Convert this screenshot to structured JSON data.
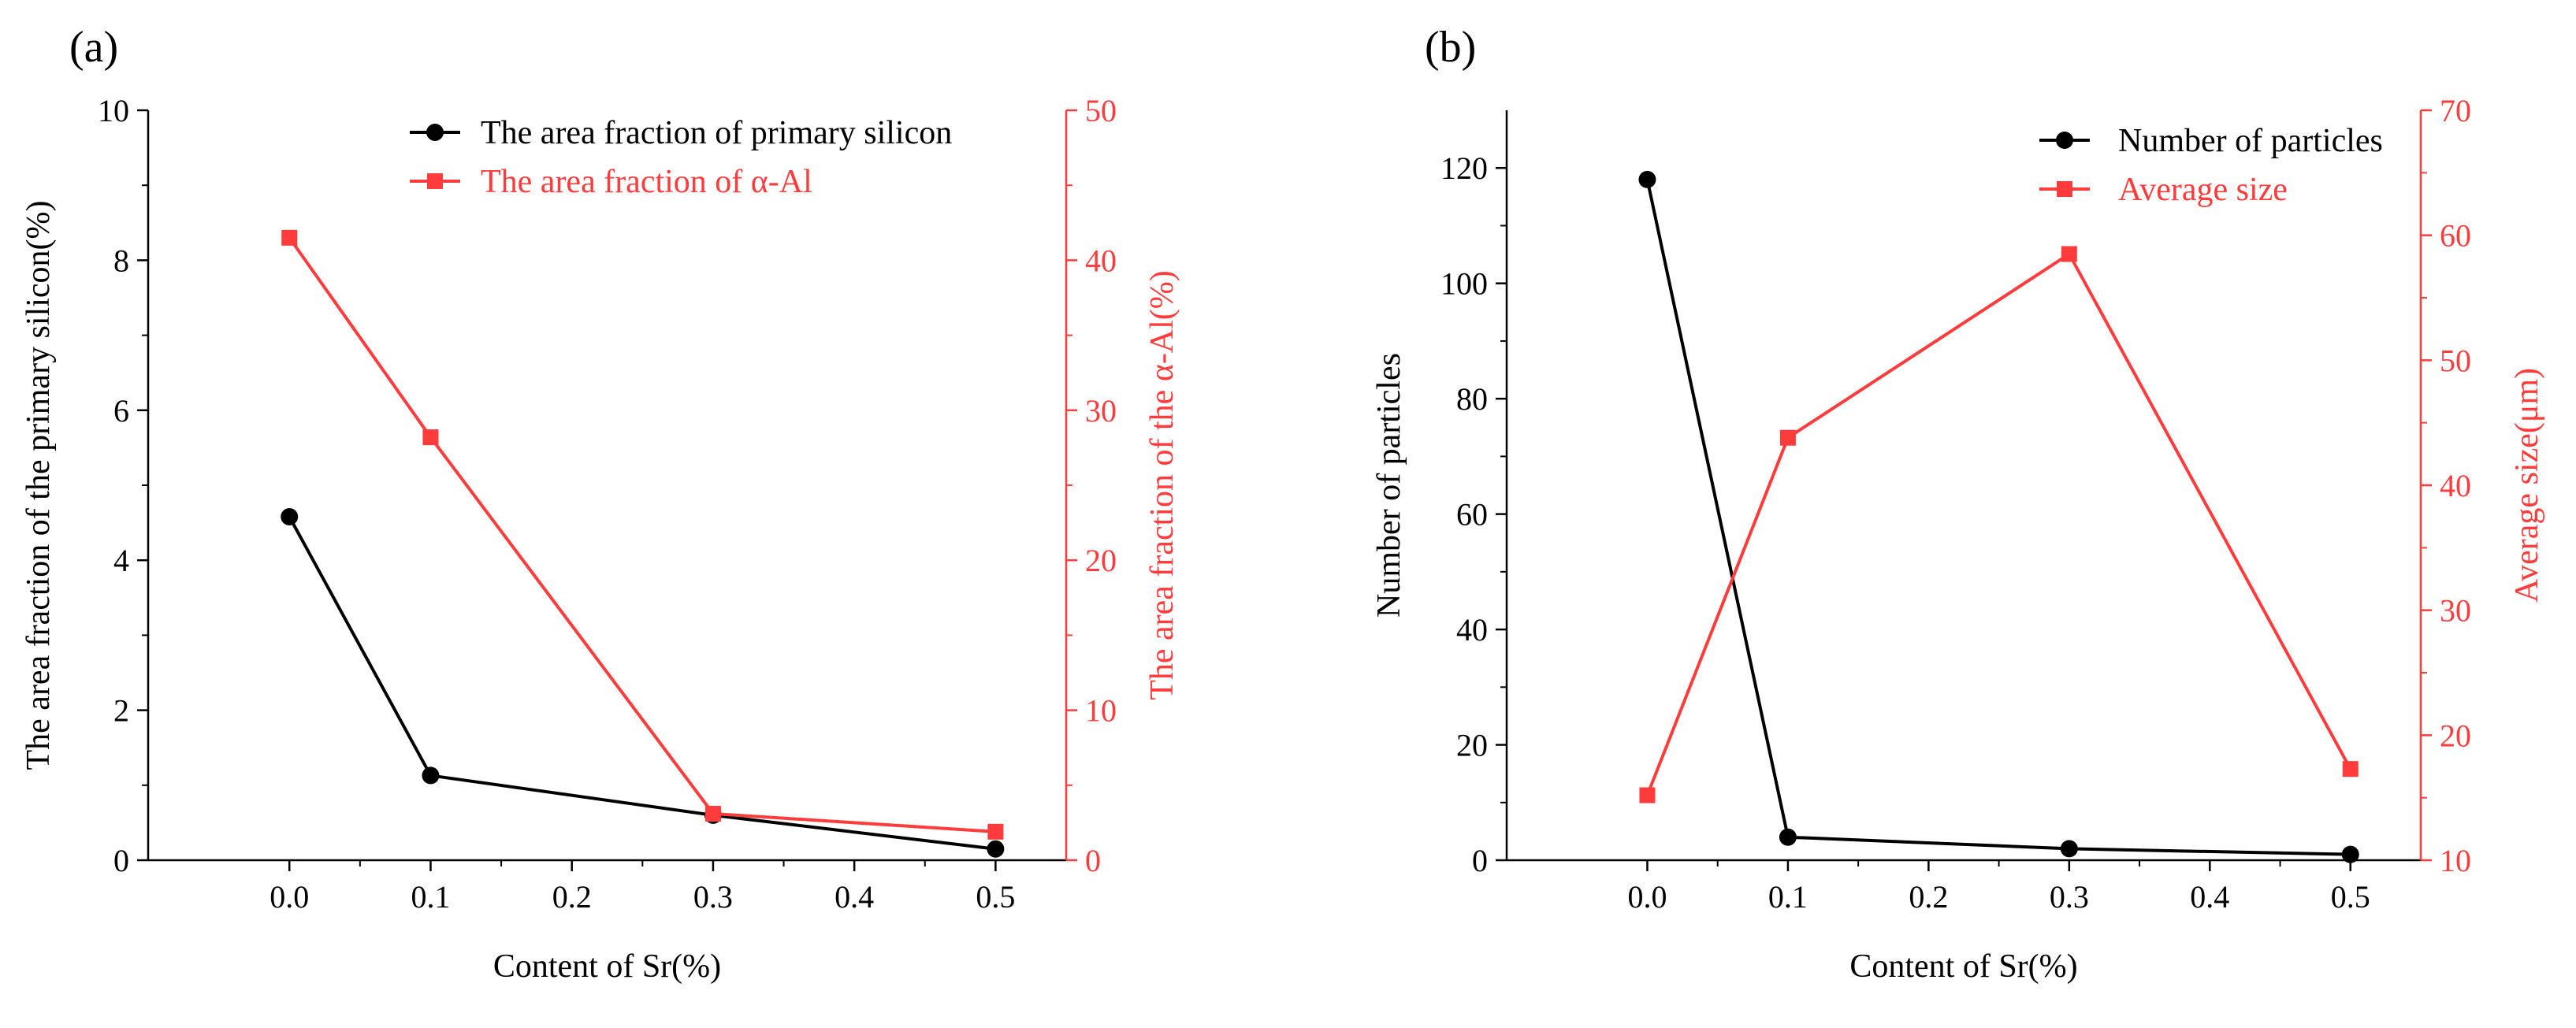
{
  "chart_data": [
    {
      "panel": "(a)",
      "type": "line",
      "xlabel": "Content of Sr(%)",
      "ylabel": "The area fraction of the primary silicon(%)",
      "ylabel_right": "The area fraction of the α-Al(%)",
      "x": [
        0.0,
        0.1,
        0.3,
        0.5
      ],
      "x_ticks": [
        "0.0",
        "0.1",
        "0.2",
        "0.3",
        "0.4",
        "0.5"
      ],
      "xlim": [
        -0.1,
        0.55
      ],
      "ylim": [
        0,
        10
      ],
      "y_ticks": [
        "0",
        "2",
        "4",
        "6",
        "8",
        "10"
      ],
      "ylim_right": [
        0,
        50
      ],
      "y_ticks_right": [
        "0",
        "10",
        "20",
        "30",
        "40",
        "50"
      ],
      "series": [
        {
          "name": "The area fraction of  primary silicon",
          "axis": "left",
          "color": "#000000",
          "marker": "circle",
          "values": [
            4.58,
            1.13,
            0.6,
            0.15
          ]
        },
        {
          "name": "The area fraction of  α-Al",
          "axis": "right",
          "color": "#ff3b3b",
          "marker": "square",
          "values": [
            41.5,
            28.2,
            3.1,
            1.9
          ]
        }
      ],
      "legend": "top-right"
    },
    {
      "panel": "(b)",
      "type": "line",
      "xlabel": "Content of Sr(%)",
      "ylabel": "Number of particles",
      "ylabel_right": "Average size(μm)",
      "x": [
        0.0,
        0.1,
        0.3,
        0.5
      ],
      "x_ticks": [
        "0.0",
        "0.1",
        "0.2",
        "0.3",
        "0.4",
        "0.5"
      ],
      "xlim": [
        -0.1,
        0.55
      ],
      "ylim": [
        0,
        130
      ],
      "y_ticks": [
        "0",
        "20",
        "40",
        "60",
        "80",
        "100",
        "120"
      ],
      "ylim_right": [
        10,
        70
      ],
      "y_ticks_right": [
        "10",
        "20",
        "30",
        "40",
        "50",
        "60",
        "70"
      ],
      "series": [
        {
          "name": "Number of particles",
          "axis": "left",
          "color": "#000000",
          "marker": "circle",
          "values": [
            118,
            4,
            2,
            1
          ]
        },
        {
          "name": "Average size",
          "axis": "right",
          "color": "#ff3b3b",
          "marker": "square",
          "values": [
            15.2,
            43.8,
            58.5,
            17.3
          ]
        }
      ],
      "legend": "top-right"
    }
  ]
}
